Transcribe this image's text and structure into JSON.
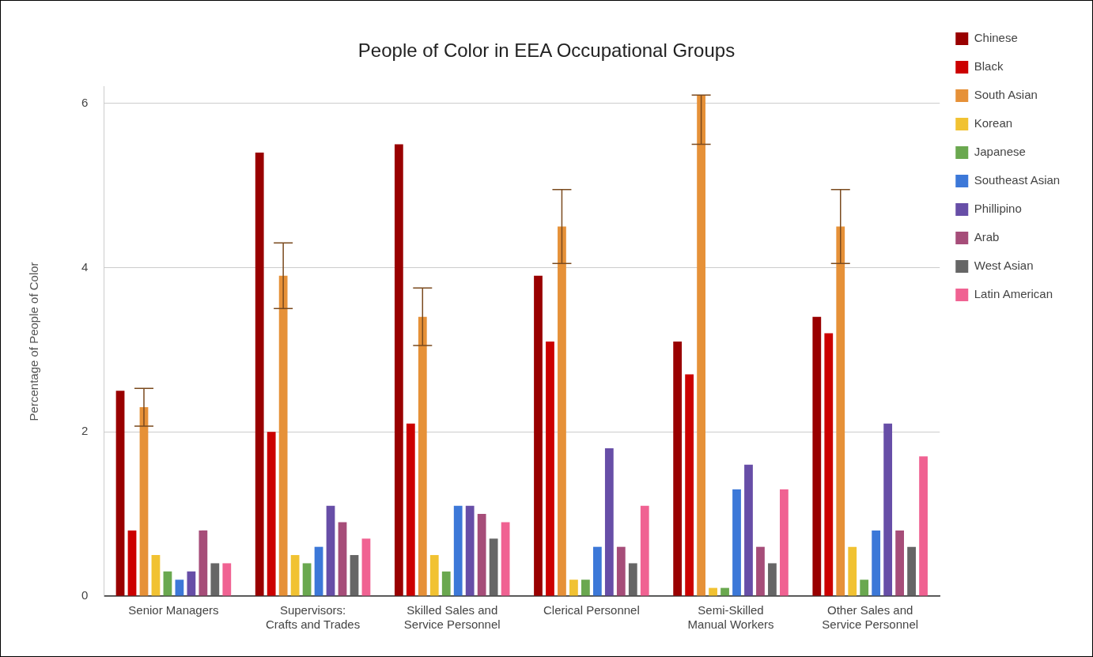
{
  "chart_data": {
    "type": "bar",
    "title": "People of Color in EEA Occupational Groups",
    "ylabel": "Percentage of People of Color",
    "categories": [
      "Senior Managers",
      "Supervisors: Crafts and Trades",
      "Skilled Sales and Service Personnel",
      "Clerical Personnel",
      "Semi-Skilled Manual Workers",
      "Other Sales and Service Personnel"
    ],
    "series": [
      {
        "name": "Chinese",
        "color": "#990000",
        "values": [
          2.5,
          5.4,
          5.5,
          3.9,
          3.1,
          3.4
        ]
      },
      {
        "name": "Black",
        "color": "#cc0000",
        "values": [
          0.8,
          2.0,
          2.1,
          3.1,
          2.7,
          3.2
        ]
      },
      {
        "name": "South Asian",
        "color": "#e69138",
        "values": [
          2.3,
          3.9,
          3.4,
          4.5,
          6.1,
          4.5
        ],
        "errors": [
          0.23,
          0.4,
          0.35,
          0.45,
          [
            5.5,
            6.1
          ],
          0.45
        ]
      },
      {
        "name": "Korean",
        "color": "#f1c232",
        "values": [
          0.5,
          0.5,
          0.5,
          0.2,
          0.1,
          0.6
        ]
      },
      {
        "name": "Japanese",
        "color": "#6aa84f",
        "values": [
          0.3,
          0.4,
          0.3,
          0.2,
          0.1,
          0.2
        ]
      },
      {
        "name": "Southeast Asian",
        "color": "#3c78d8",
        "values": [
          0.2,
          0.6,
          1.1,
          0.6,
          1.3,
          0.8
        ]
      },
      {
        "name": "Phillipino",
        "color": "#674ea7",
        "values": [
          0.3,
          1.1,
          1.1,
          1.8,
          1.6,
          2.1
        ]
      },
      {
        "name": "Arab",
        "color": "#a64d79",
        "values": [
          0.8,
          0.9,
          1.0,
          0.6,
          0.6,
          0.8
        ]
      },
      {
        "name": "West Asian",
        "color": "#666666",
        "values": [
          0.4,
          0.5,
          0.7,
          0.4,
          0.4,
          0.6
        ]
      },
      {
        "name": "Latin American",
        "color": "#f06292",
        "values": [
          0.4,
          0.7,
          0.9,
          1.1,
          1.3,
          1.7
        ]
      }
    ],
    "ylim": [
      0,
      6.2
    ],
    "yticks": [
      0,
      2,
      4,
      6
    ],
    "grid": "y",
    "legend": "right"
  }
}
